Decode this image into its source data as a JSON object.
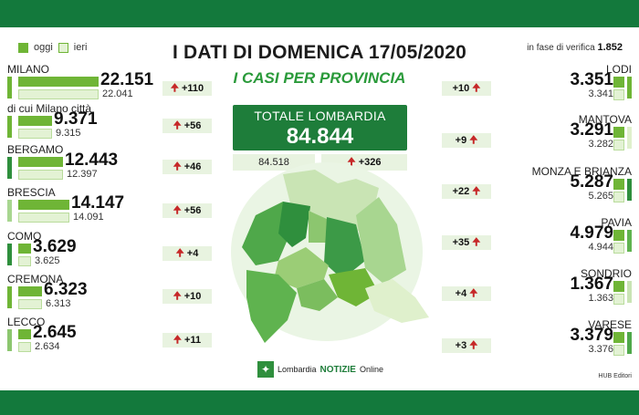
{
  "header": {
    "title": "I DATI DI DOMENICA 17/05/2020",
    "subtitle": "I CASI PER PROVINCIA"
  },
  "legend": {
    "today": "oggi",
    "yesterday": "ieri"
  },
  "verifica": {
    "label": "in fase di verifica",
    "value": "1.852"
  },
  "total": {
    "label": "TOTALE LOMBARDIA",
    "value": "84.844",
    "previous": "84.518",
    "increase": "+326"
  },
  "left_provinces": [
    {
      "name": "MILANO",
      "today": "22.151",
      "yesterday": "22.041",
      "delta": "+110",
      "ratio": 1.0
    },
    {
      "name": "di cui Milano città",
      "today": "9.371",
      "yesterday": "9.315",
      "delta": "+56",
      "ratio": 0.42
    },
    {
      "name": "BERGAMO",
      "today": "12.443",
      "yesterday": "12.397",
      "delta": "+46",
      "ratio": 0.56
    },
    {
      "name": "BRESCIA",
      "today": "14.147",
      "yesterday": "14.091",
      "delta": "+56",
      "ratio": 0.64
    },
    {
      "name": "COMO",
      "today": "3.629",
      "yesterday": "3.625",
      "delta": "+4",
      "ratio": 0.16
    },
    {
      "name": "CREMONA",
      "today": "6.323",
      "yesterday": "6.313",
      "delta": "+10",
      "ratio": 0.29
    },
    {
      "name": "LECCO",
      "today": "2.645",
      "yesterday": "2.634",
      "delta": "+11",
      "ratio": 0.12
    }
  ],
  "right_provinces": [
    {
      "name": "LODI",
      "today": "3.351",
      "yesterday": "3.341",
      "delta": "+10"
    },
    {
      "name": "MANTOVA",
      "today": "3.291",
      "yesterday": "3.282",
      "delta": "+9"
    },
    {
      "name": "MONZA E BRIANZA",
      "today": "5.287",
      "yesterday": "5.265",
      "delta": "+22"
    },
    {
      "name": "PAVIA",
      "today": "4.979",
      "yesterday": "4.944",
      "delta": "+35"
    },
    {
      "name": "SONDRIO",
      "today": "1.367",
      "yesterday": "1.363",
      "delta": "+4"
    },
    {
      "name": "VARESE",
      "today": "3.379",
      "yesterday": "3.376",
      "delta": "+3"
    }
  ],
  "brand": {
    "name": "Lombardia",
    "notizie": "NOTIZIE",
    "online": "Online"
  },
  "credit": "HUB Editori",
  "colors": {
    "band": "#13793c",
    "today_bar": "#6fb536",
    "yesterday_bar": "#e3f2d4",
    "arrow": "#c62828"
  }
}
